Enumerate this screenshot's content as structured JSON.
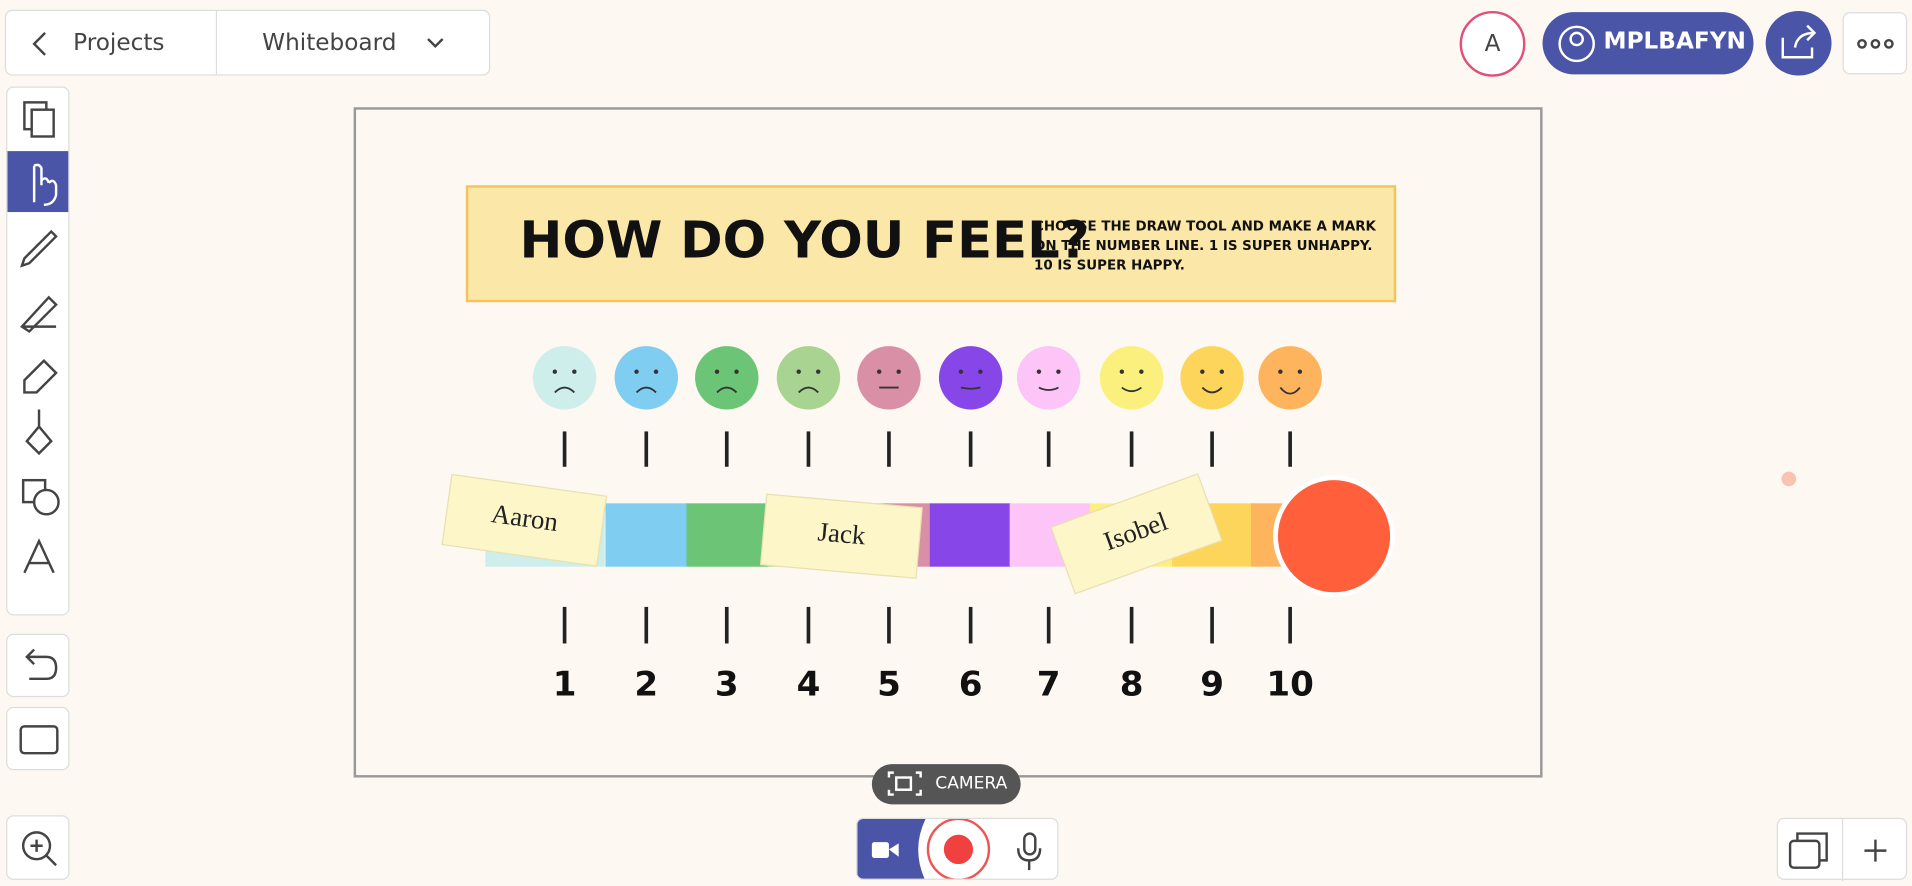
{
  "topbar": {
    "back": "Projects",
    "board": "Whiteboard",
    "avatar": "A",
    "room": "MPLBAFYN"
  },
  "board": {
    "title": "HOW DO YOU FEEL?",
    "instructions": [
      "CHOOSE THE DRAW TOOL AND MAKE A MARK",
      "ON THE NUMBER LINE. 1 IS SUPER UNHAPPY.",
      "10 IS SUPER HAPPY."
    ],
    "notes": [
      "Aaron",
      "Jack",
      "Isobel"
    ],
    "numbers": [
      "1",
      "2",
      "3",
      "4",
      "5",
      "6",
      "7",
      "8",
      "9",
      "10"
    ]
  },
  "bottom": {
    "camera": "CAMERA"
  }
}
